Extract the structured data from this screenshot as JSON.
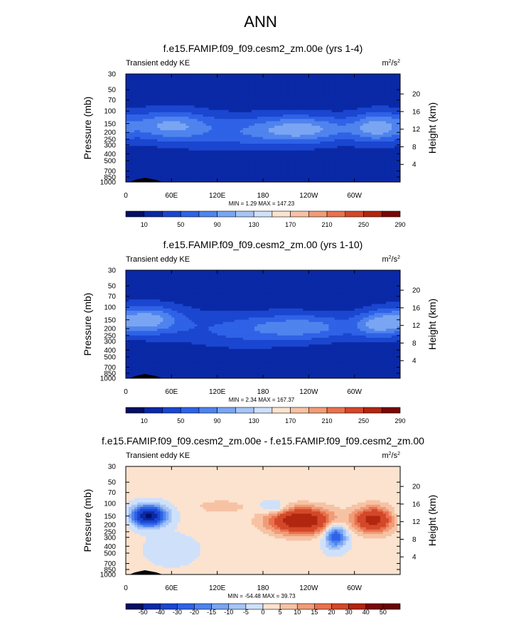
{
  "page_title": "ANN",
  "colors": {
    "ke_scale": [
      "#030f62",
      "#0a29a6",
      "#1a46d0",
      "#2f62e6",
      "#4f83ee",
      "#7aa5f2",
      "#a6c5f6",
      "#cfe0fa",
      "#fbe3cf",
      "#f7c2a4",
      "#f19c78",
      "#e8724e",
      "#d34828",
      "#b1260f",
      "#7a0707"
    ],
    "diff_scale": [
      "#030f62",
      "#0a29a6",
      "#1a46d0",
      "#2f62e6",
      "#4f83ee",
      "#7aa5f2",
      "#a6c5f6",
      "#cfe0fa",
      "#fbe3cf",
      "#f7c2a4",
      "#f19c78",
      "#e8724e",
      "#d34828",
      "#b1260f",
      "#7a0707",
      "#6a0505"
    ],
    "ground": "#000000"
  },
  "chart_data": [
    {
      "type": "heatmap",
      "title": "f.e15.FAMIP.f09_f09.cesm2_zm.00e (yrs 1-4)",
      "field_label": "Transient eddy KE",
      "units_base": "m",
      "units_exp1": "2",
      "units_mid": "/s",
      "units_exp2": "2",
      "ylabel": "Pressure (mb)",
      "ylabel_right": "Height (km)",
      "x_ticks": [
        "0",
        "60E",
        "120E",
        "180",
        "120W",
        "60W"
      ],
      "y_ticks": [
        "30",
        "50",
        "70",
        "100",
        "150",
        "200",
        "250",
        "300",
        "400",
        "500",
        "700",
        "850",
        "1000"
      ],
      "y_values": [
        30,
        50,
        70,
        100,
        150,
        200,
        250,
        300,
        400,
        500,
        700,
        850,
        1000
      ],
      "height_ticks": [
        "20",
        "16",
        "12",
        "8",
        "4"
      ],
      "height_values": [
        20,
        16,
        12,
        8,
        4
      ],
      "min_max": "MIN =   1.29  MAX = 147.23",
      "colorbar_labels": [
        "10",
        "50",
        "90",
        "130",
        "170",
        "210",
        "250",
        "290"
      ],
      "features": [
        {
          "lon": 55,
          "p": 160,
          "amp": 140,
          "rx": 38,
          "ry": 0.35
        },
        {
          "lon": 235,
          "p": 180,
          "amp": 145,
          "rx": 45,
          "ry": 0.32
        },
        {
          "lon": 330,
          "p": 170,
          "amp": 147,
          "rx": 25,
          "ry": 0.35
        },
        {
          "lon": 150,
          "p": 200,
          "amp": 75,
          "rx": 60,
          "ry": 0.4
        }
      ],
      "base": 25
    },
    {
      "type": "heatmap",
      "title": "f.e15.FAMIP.f09_f09.cesm2_zm.00 (yrs 1-10)",
      "field_label": "Transient eddy KE",
      "units_base": "m",
      "units_exp1": "2",
      "units_mid": "/s",
      "units_exp2": "2",
      "ylabel": "Pressure (mb)",
      "ylabel_right": "Height (km)",
      "x_ticks": [
        "0",
        "60E",
        "120E",
        "180",
        "120W",
        "60W"
      ],
      "y_ticks": [
        "30",
        "50",
        "70",
        "100",
        "150",
        "200",
        "250",
        "300",
        "400",
        "500",
        "700",
        "850",
        "1000"
      ],
      "y_values": [
        30,
        50,
        70,
        100,
        150,
        200,
        250,
        300,
        400,
        500,
        700,
        850,
        1000
      ],
      "height_ticks": [
        "20",
        "16",
        "12",
        "8",
        "4"
      ],
      "height_values": [
        20,
        16,
        12,
        8,
        4
      ],
      "min_max": "MIN =   2.34  MAX = 167.37",
      "colorbar_labels": [
        "10",
        "50",
        "90",
        "130",
        "170",
        "210",
        "250",
        "290"
      ],
      "features": [
        {
          "lon": 25,
          "p": 150,
          "amp": 167,
          "rx": 35,
          "ry": 0.33
        },
        {
          "lon": 240,
          "p": 190,
          "amp": 110,
          "rx": 50,
          "ry": 0.3
        },
        {
          "lon": 330,
          "p": 175,
          "amp": 115,
          "rx": 20,
          "ry": 0.3
        },
        {
          "lon": 150,
          "p": 210,
          "amp": 70,
          "rx": 60,
          "ry": 0.4
        }
      ],
      "base": 25
    },
    {
      "type": "heatmap",
      "title": "f.e15.FAMIP.f09_f09.cesm2_zm.00e - f.e15.FAMIP.f09_f09.cesm2_zm.00",
      "field_label": "Transient eddy KE",
      "units_base": "m",
      "units_exp1": "2",
      "units_mid": "/s",
      "units_exp2": "2",
      "ylabel": "Pressure (mb)",
      "ylabel_right": "Height (km)",
      "x_ticks": [
        "0",
        "60E",
        "120E",
        "180",
        "120W",
        "60W"
      ],
      "y_ticks": [
        "30",
        "50",
        "70",
        "100",
        "150",
        "200",
        "250",
        "300",
        "400",
        "500",
        "700",
        "850",
        "1000"
      ],
      "y_values": [
        30,
        50,
        70,
        100,
        150,
        200,
        250,
        300,
        400,
        500,
        700,
        850,
        1000
      ],
      "height_ticks": [
        "20",
        "16",
        "12",
        "8",
        "4"
      ],
      "height_values": [
        20,
        16,
        12,
        8,
        4
      ],
      "min_max": "MIN = -54.48  MAX =  39.73",
      "colorbar_labels": [
        "-50",
        "-40",
        "-30",
        "-20",
        "-15",
        "-10",
        "-5",
        "0",
        "5",
        "10",
        "15",
        "20",
        "30",
        "40",
        "50"
      ],
      "features": [
        {
          "lon": 30,
          "p": 150,
          "amp": -54,
          "rx": 15,
          "ry": 0.22
        },
        {
          "lon": 230,
          "p": 175,
          "amp": 39,
          "rx": 30,
          "ry": 0.3
        },
        {
          "lon": 325,
          "p": 170,
          "amp": 33,
          "rx": 18,
          "ry": 0.3
        },
        {
          "lon": 195,
          "p": 115,
          "amp": -12,
          "rx": 12,
          "ry": 0.15
        },
        {
          "lon": 275,
          "p": 280,
          "amp": -28,
          "rx": 10,
          "ry": 0.28
        },
        {
          "lon": 125,
          "p": 110,
          "amp": 8,
          "rx": 22,
          "ry": 0.15
        },
        {
          "lon": 60,
          "p": 450,
          "amp": -6,
          "rx": 20,
          "ry": 0.3
        }
      ],
      "base": 1
    }
  ]
}
